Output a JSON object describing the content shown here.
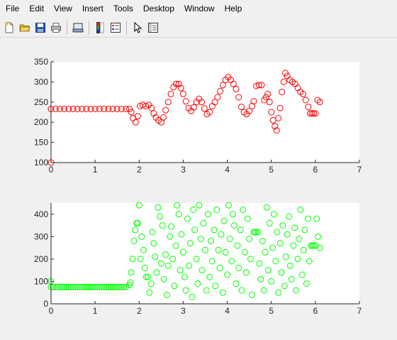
{
  "menu": {
    "items": [
      "File",
      "Edit",
      "View",
      "Insert",
      "Tools",
      "Desktop",
      "Window",
      "Help"
    ]
  },
  "toolbar": {
    "buttons": [
      "new-figure-icon",
      "open-file-icon",
      "save-icon",
      "print-icon",
      "print-preview-icon",
      "colorbar-icon",
      "legend-icon",
      "pointer-icon",
      "property-inspector-icon"
    ]
  },
  "colors": {
    "series_top": "#ff0000",
    "series_bottom": "#00ff00",
    "axes_background": "#ffffff",
    "figure_background": "#f0f0f0"
  },
  "chart_data": [
    {
      "type": "scatter",
      "title": "",
      "xlabel": "",
      "ylabel": "",
      "xlim": [
        0,
        7
      ],
      "ylim": [
        100,
        350
      ],
      "xticks": [
        "0",
        "1",
        "2",
        "3",
        "4",
        "5",
        "6",
        "7"
      ],
      "yticks": [
        "100",
        "150",
        "200",
        "250",
        "300",
        "350"
      ],
      "grid": false,
      "marker": "circle-open",
      "series": [
        {
          "color": "#ff0000",
          "points": [
            [
              0.0,
              100
            ],
            [
              0.0,
              233
            ],
            [
              0.1,
              233
            ],
            [
              0.2,
              233
            ],
            [
              0.3,
              233
            ],
            [
              0.4,
              233
            ],
            [
              0.5,
              233
            ],
            [
              0.6,
              233
            ],
            [
              0.7,
              233
            ],
            [
              0.8,
              233
            ],
            [
              0.9,
              233
            ],
            [
              1.0,
              233
            ],
            [
              1.1,
              233
            ],
            [
              1.2,
              233
            ],
            [
              1.3,
              233
            ],
            [
              1.4,
              233
            ],
            [
              1.5,
              233
            ],
            [
              1.6,
              233
            ],
            [
              1.7,
              233
            ],
            [
              1.78,
              233
            ],
            [
              1.82,
              225
            ],
            [
              1.86,
              210
            ],
            [
              1.92,
              200
            ],
            [
              1.97,
              215
            ],
            [
              2.02,
              240
            ],
            [
              2.08,
              243
            ],
            [
              2.15,
              240
            ],
            [
              2.22,
              243
            ],
            [
              2.28,
              235
            ],
            [
              2.33,
              222
            ],
            [
              2.38,
              212
            ],
            [
              2.44,
              205
            ],
            [
              2.5,
              200
            ],
            [
              2.55,
              212
            ],
            [
              2.6,
              230
            ],
            [
              2.66,
              250
            ],
            [
              2.72,
              270
            ],
            [
              2.78,
              287
            ],
            [
              2.84,
              295
            ],
            [
              2.9,
              295
            ],
            [
              2.95,
              285
            ],
            [
              3.0,
              270
            ],
            [
              3.06,
              252
            ],
            [
              3.12,
              235
            ],
            [
              3.18,
              228
            ],
            [
              3.24,
              237
            ],
            [
              3.3,
              250
            ],
            [
              3.36,
              258
            ],
            [
              3.42,
              250
            ],
            [
              3.48,
              234
            ],
            [
              3.54,
              220
            ],
            [
              3.6,
              225
            ],
            [
              3.66,
              240
            ],
            [
              3.72,
              250
            ],
            [
              3.78,
              262
            ],
            [
              3.84,
              277
            ],
            [
              3.9,
              292
            ],
            [
              3.96,
              305
            ],
            [
              4.02,
              312
            ],
            [
              4.08,
              305
            ],
            [
              4.14,
              295
            ],
            [
              4.2,
              282
            ],
            [
              4.26,
              262
            ],
            [
              4.32,
              238
            ],
            [
              4.38,
              225
            ],
            [
              4.44,
              220
            ],
            [
              4.5,
              228
            ],
            [
              4.56,
              240
            ],
            [
              4.6,
              252
            ],
            [
              4.66,
              290
            ],
            [
              4.72,
              292
            ],
            [
              4.78,
              292
            ],
            [
              4.84,
              255
            ],
            [
              4.88,
              262
            ],
            [
              4.92,
              270
            ],
            [
              4.96,
              250
            ],
            [
              5.0,
              225
            ],
            [
              5.04,
              205
            ],
            [
              5.08,
              190
            ],
            [
              5.12,
              180
            ],
            [
              5.16,
              210
            ],
            [
              5.2,
              235
            ],
            [
              5.24,
              275
            ],
            [
              5.28,
              300
            ],
            [
              5.32,
              322
            ],
            [
              5.36,
              315
            ],
            [
              5.42,
              305
            ],
            [
              5.48,
              300
            ],
            [
              5.54,
              295
            ],
            [
              5.6,
              285
            ],
            [
              5.66,
              275
            ],
            [
              5.72,
              270
            ],
            [
              5.78,
              255
            ],
            [
              5.84,
              238
            ],
            [
              5.88,
              222
            ],
            [
              5.92,
              222
            ],
            [
              5.96,
              222
            ],
            [
              6.0,
              222
            ],
            [
              6.05,
              255
            ],
            [
              6.1,
              250
            ]
          ]
        }
      ]
    },
    {
      "type": "scatter",
      "title": "",
      "xlabel": "",
      "ylabel": "",
      "xlim": [
        0,
        7
      ],
      "ylim": [
        0,
        450
      ],
      "xticks": [
        "0",
        "1",
        "2",
        "3",
        "4",
        "5",
        "6",
        "7"
      ],
      "yticks": [
        "0",
        "100",
        "200",
        "300",
        "400"
      ],
      "grid": false,
      "marker": "circle-open",
      "series": [
        {
          "color": "#00ff00",
          "points": [
            [
              0.0,
              100
            ],
            [
              0.0,
              75
            ],
            [
              0.05,
              75
            ],
            [
              0.1,
              75
            ],
            [
              0.15,
              75
            ],
            [
              0.2,
              75
            ],
            [
              0.25,
              75
            ],
            [
              0.3,
              75
            ],
            [
              0.35,
              75
            ],
            [
              0.4,
              75
            ],
            [
              0.45,
              75
            ],
            [
              0.5,
              75
            ],
            [
              0.55,
              75
            ],
            [
              0.6,
              75
            ],
            [
              0.65,
              75
            ],
            [
              0.7,
              75
            ],
            [
              0.75,
              75
            ],
            [
              0.8,
              75
            ],
            [
              0.85,
              75
            ],
            [
              0.9,
              75
            ],
            [
              0.95,
              75
            ],
            [
              1.0,
              75
            ],
            [
              1.05,
              75
            ],
            [
              1.1,
              75
            ],
            [
              1.15,
              75
            ],
            [
              1.2,
              75
            ],
            [
              1.25,
              75
            ],
            [
              1.3,
              75
            ],
            [
              1.35,
              75
            ],
            [
              1.4,
              75
            ],
            [
              1.45,
              75
            ],
            [
              1.5,
              75
            ],
            [
              1.55,
              75
            ],
            [
              1.6,
              75
            ],
            [
              1.65,
              75
            ],
            [
              1.7,
              75
            ],
            [
              1.78,
              85
            ],
            [
              1.8,
              95
            ],
            [
              1.82,
              140
            ],
            [
              1.85,
              200
            ],
            [
              1.88,
              280
            ],
            [
              1.91,
              330
            ],
            [
              1.94,
              360
            ],
            [
              1.97,
              360
            ],
            [
              2.0,
              440
            ],
            [
              2.03,
              200
            ],
            [
              2.06,
              300
            ],
            [
              2.1,
              240
            ],
            [
              2.13,
              160
            ],
            [
              2.16,
              120
            ],
            [
              2.2,
              120
            ],
            [
              2.23,
              50
            ],
            [
              2.27,
              90
            ],
            [
              2.3,
              320
            ],
            [
              2.33,
              270
            ],
            [
              2.36,
              210
            ],
            [
              2.4,
              140
            ],
            [
              2.43,
              430
            ],
            [
              2.47,
              390
            ],
            [
              2.5,
              180
            ],
            [
              2.53,
              350
            ],
            [
              2.56,
              110
            ],
            [
              2.6,
              220
            ],
            [
              2.63,
              40
            ],
            [
              2.66,
              170
            ],
            [
              2.7,
              300
            ],
            [
              2.73,
              345
            ],
            [
              2.76,
              200
            ],
            [
              2.8,
              80
            ],
            [
              2.83,
              260
            ],
            [
              2.86,
              440
            ],
            [
              2.9,
              400
            ],
            [
              2.93,
              150
            ],
            [
              2.96,
              310
            ],
            [
              3.0,
              230
            ],
            [
              3.03,
              120
            ],
            [
              3.06,
              60
            ],
            [
              3.1,
              380
            ],
            [
              3.13,
              170
            ],
            [
              3.16,
              270
            ],
            [
              3.2,
              30
            ],
            [
              3.23,
              420
            ],
            [
              3.26,
              330
            ],
            [
              3.3,
              200
            ],
            [
              3.33,
              90
            ],
            [
              3.36,
              440
            ],
            [
              3.4,
              290
            ],
            [
              3.43,
              150
            ],
            [
              3.46,
              360
            ],
            [
              3.5,
              240
            ],
            [
              3.53,
              60
            ],
            [
              3.56,
              400
            ],
            [
              3.6,
              120
            ],
            [
              3.63,
              280
            ],
            [
              3.66,
              190
            ],
            [
              3.7,
              330
            ],
            [
              3.73,
              80
            ],
            [
              3.76,
              420
            ],
            [
              3.8,
              240
            ],
            [
              3.83,
              160
            ],
            [
              3.86,
              310
            ],
            [
              3.9,
              50
            ],
            [
              3.93,
              370
            ],
            [
              3.96,
              230
            ],
            [
              4.0,
              130
            ],
            [
              4.03,
              440
            ],
            [
              4.06,
              290
            ],
            [
              4.1,
              190
            ],
            [
              4.13,
              400
            ],
            [
              4.16,
              350
            ],
            [
              4.2,
              90
            ],
            [
              4.23,
              260
            ],
            [
              4.26,
              160
            ],
            [
              4.3,
              330
            ],
            [
              4.33,
              60
            ],
            [
              4.36,
              420
            ],
            [
              4.4,
              230
            ],
            [
              4.43,
              140
            ],
            [
              4.46,
              380
            ],
            [
              4.5,
              290
            ],
            [
              4.53,
              200
            ],
            [
              4.56,
              40
            ],
            [
              4.6,
              320
            ],
            [
              4.63,
              320
            ],
            [
              4.66,
              320
            ],
            [
              4.7,
              320
            ],
            [
              4.73,
              180
            ],
            [
              4.76,
              110
            ],
            [
              4.8,
              280
            ],
            [
              4.83,
              60
            ],
            [
              4.86,
              230
            ],
            [
              4.9,
              430
            ],
            [
              4.93,
              150
            ],
            [
              4.96,
              360
            ],
            [
              5.0,
              100
            ],
            [
              5.03,
              250
            ],
            [
              5.06,
              400
            ],
            [
              5.1,
              190
            ],
            [
              5.13,
              320
            ],
            [
              5.16,
              50
            ],
            [
              5.2,
              270
            ],
            [
              5.23,
              140
            ],
            [
              5.26,
              350
            ],
            [
              5.3,
              80
            ],
            [
              5.33,
              210
            ],
            [
              5.36,
              310
            ],
            [
              5.4,
              390
            ],
            [
              5.43,
              170
            ],
            [
              5.46,
              110
            ],
            [
              5.5,
              260
            ],
            [
              5.53,
              340
            ],
            [
              5.56,
              60
            ],
            [
              5.6,
              200
            ],
            [
              5.63,
              290
            ],
            [
              5.66,
              420
            ],
            [
              5.7,
              130
            ],
            [
              5.73,
              240
            ],
            [
              5.76,
              330
            ],
            [
              5.8,
              90
            ],
            [
              5.83,
              380
            ],
            [
              5.86,
              190
            ],
            [
              5.9,
              260
            ],
            [
              5.93,
              260
            ],
            [
              5.96,
              260
            ],
            [
              6.0,
              260
            ],
            [
              6.03,
              380
            ],
            [
              6.06,
              300
            ],
            [
              6.1,
              250
            ]
          ]
        }
      ]
    }
  ]
}
